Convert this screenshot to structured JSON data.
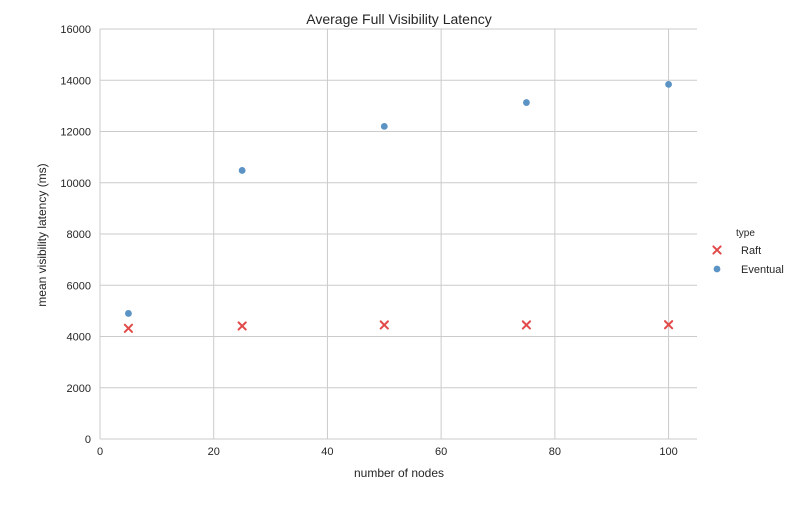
{
  "chart_data": {
    "type": "scatter",
    "title": "Average Full Visibility Latency",
    "xlabel": "number of nodes",
    "ylabel": "mean visibility latency (ms)",
    "xlim": [
      0,
      105
    ],
    "ylim": [
      0,
      16000
    ],
    "x_ticks": [
      0,
      20,
      40,
      60,
      80,
      100
    ],
    "y_ticks": [
      0,
      2000,
      4000,
      6000,
      8000,
      10000,
      12000,
      14000,
      16000
    ],
    "grid": true,
    "legend": {
      "title": "type",
      "position": "right"
    },
    "series": [
      {
        "name": "Raft",
        "marker": "x",
        "color": "#e24a4a",
        "x": [
          5,
          25,
          50,
          75,
          100
        ],
        "y": [
          4320,
          4410,
          4450,
          4450,
          4460
        ]
      },
      {
        "name": "Eventual",
        "marker": "circle",
        "color": "#5b93c4",
        "x": [
          5,
          25,
          50,
          75,
          100
        ],
        "y": [
          4900,
          10480,
          12200,
          13130,
          13840
        ]
      }
    ]
  }
}
